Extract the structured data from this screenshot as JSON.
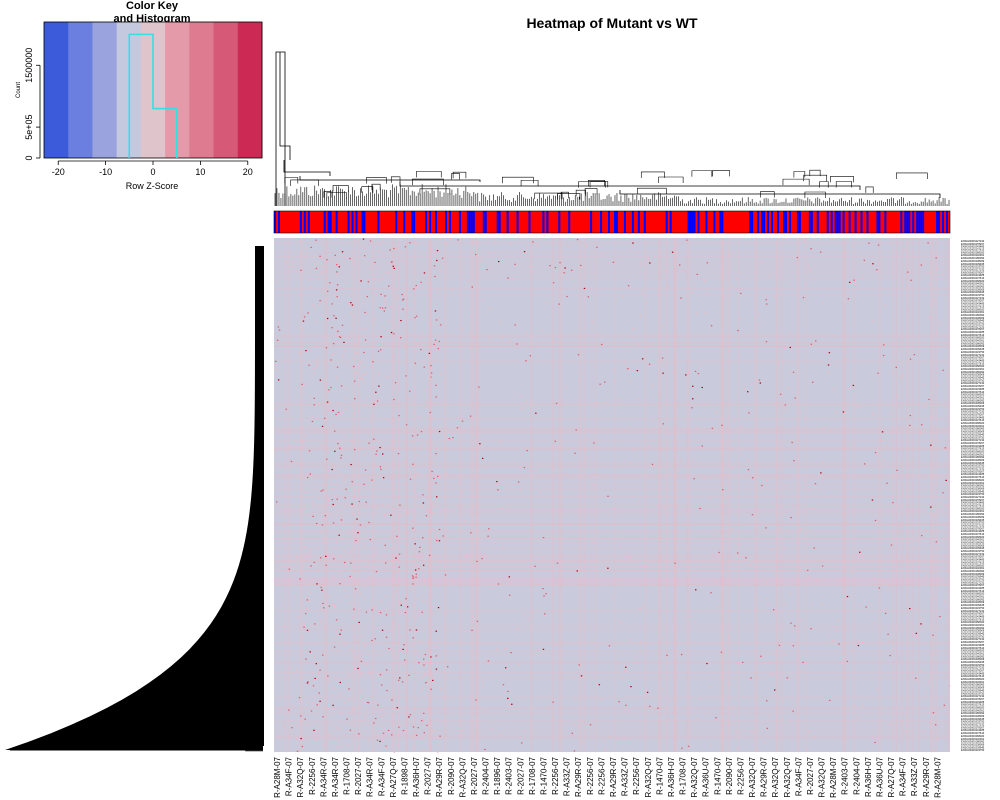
{
  "chart_data": [
    {
      "type": "heatmap",
      "title": "Heatmap of Mutant vs WT",
      "column_side_colors": {
        "values": [
          "#ff0000",
          "#0000ff"
        ]
      },
      "color_scale": [
        "#3b5bdb",
        "#6b7fe0",
        "#9aa3de",
        "#c5c9e0",
        "#e0c4cc",
        "#e49aa8",
        "#df7b90",
        "#d65a78",
        "#cc2a55"
      ],
      "cell_default_color": "#c9cbdc",
      "cell_highlight_colors": [
        "#f2b8c0",
        "#e05a6a",
        "#b00010"
      ],
      "column_labels": [
        "R-A28M-07",
        "R-A34F-07",
        "R-A32Q-07",
        "R-2256-07",
        "R-A34R-07",
        "R-A34R-07",
        "R-1708-07",
        "R-2027-07",
        "R-A34R-07",
        "R-A34F-07",
        "R-A27Q-07",
        "R-1898-07",
        "R-A36H-07",
        "R-2027-07",
        "R-A29R-07",
        "R-2090-07",
        "R-A32Q-07",
        "R-2027-07",
        "R-2404-07",
        "R-1896-07",
        "R-2403-07",
        "R-2027-07",
        "R-1708-07",
        "R-1470-07",
        "R-2256-07",
        "R-A33Z-07",
        "R-A29R-07",
        "R-2256-07",
        "R-2256-07",
        "R-A29R-07",
        "R-A33Z-07",
        "R-2256-07",
        "R-A32Q-07",
        "R-1470-07",
        "R-A36H-07",
        "R-1708-07",
        "R-A32Q-07",
        "R-A36U-07",
        "R-1470-07",
        "R-2090-07",
        "R-2256-07",
        "R-A32Q-07",
        "R-A29R-07",
        "R-A32Q-07",
        "R-A32Q-07",
        "R-A34F-07",
        "R-2027-07",
        "R-A32Q-07",
        "R-A28M-07",
        "R-2403-07",
        "R-2404-07",
        "R-A36H-07",
        "R-A36U-07",
        "R-A27Q-07",
        "R-A34F-07",
        "R-A33Z-07",
        "R-A29R-07",
        "R-A28M-07"
      ],
      "row_labels": [
        "ENSG00000227232",
        "ENSG00000278267",
        "ENSG00000243485",
        "ENSG00000237613",
        "ENSG00000268020",
        "ENSG00000240361",
        "ENSG00000186092",
        "ENSG00000238009",
        "ENSG00000239945",
        "ENSG00000233750"
      ]
    },
    {
      "type": "histogram",
      "title": "Color Key\nand Histogram",
      "xlabel": "Row Z-Score",
      "ylabel": "Count",
      "xlim": [
        -23,
        23
      ],
      "ylim": [
        0,
        2200000
      ],
      "x_ticks": [
        "-20",
        "-10",
        "0",
        "10",
        "20"
      ],
      "y_ticks": [
        "0",
        "5e+05",
        "1500000"
      ],
      "bins": [
        -5,
        0,
        5
      ],
      "counts": [
        2000000,
        800000
      ],
      "outline_color": "#35e0e0"
    }
  ]
}
